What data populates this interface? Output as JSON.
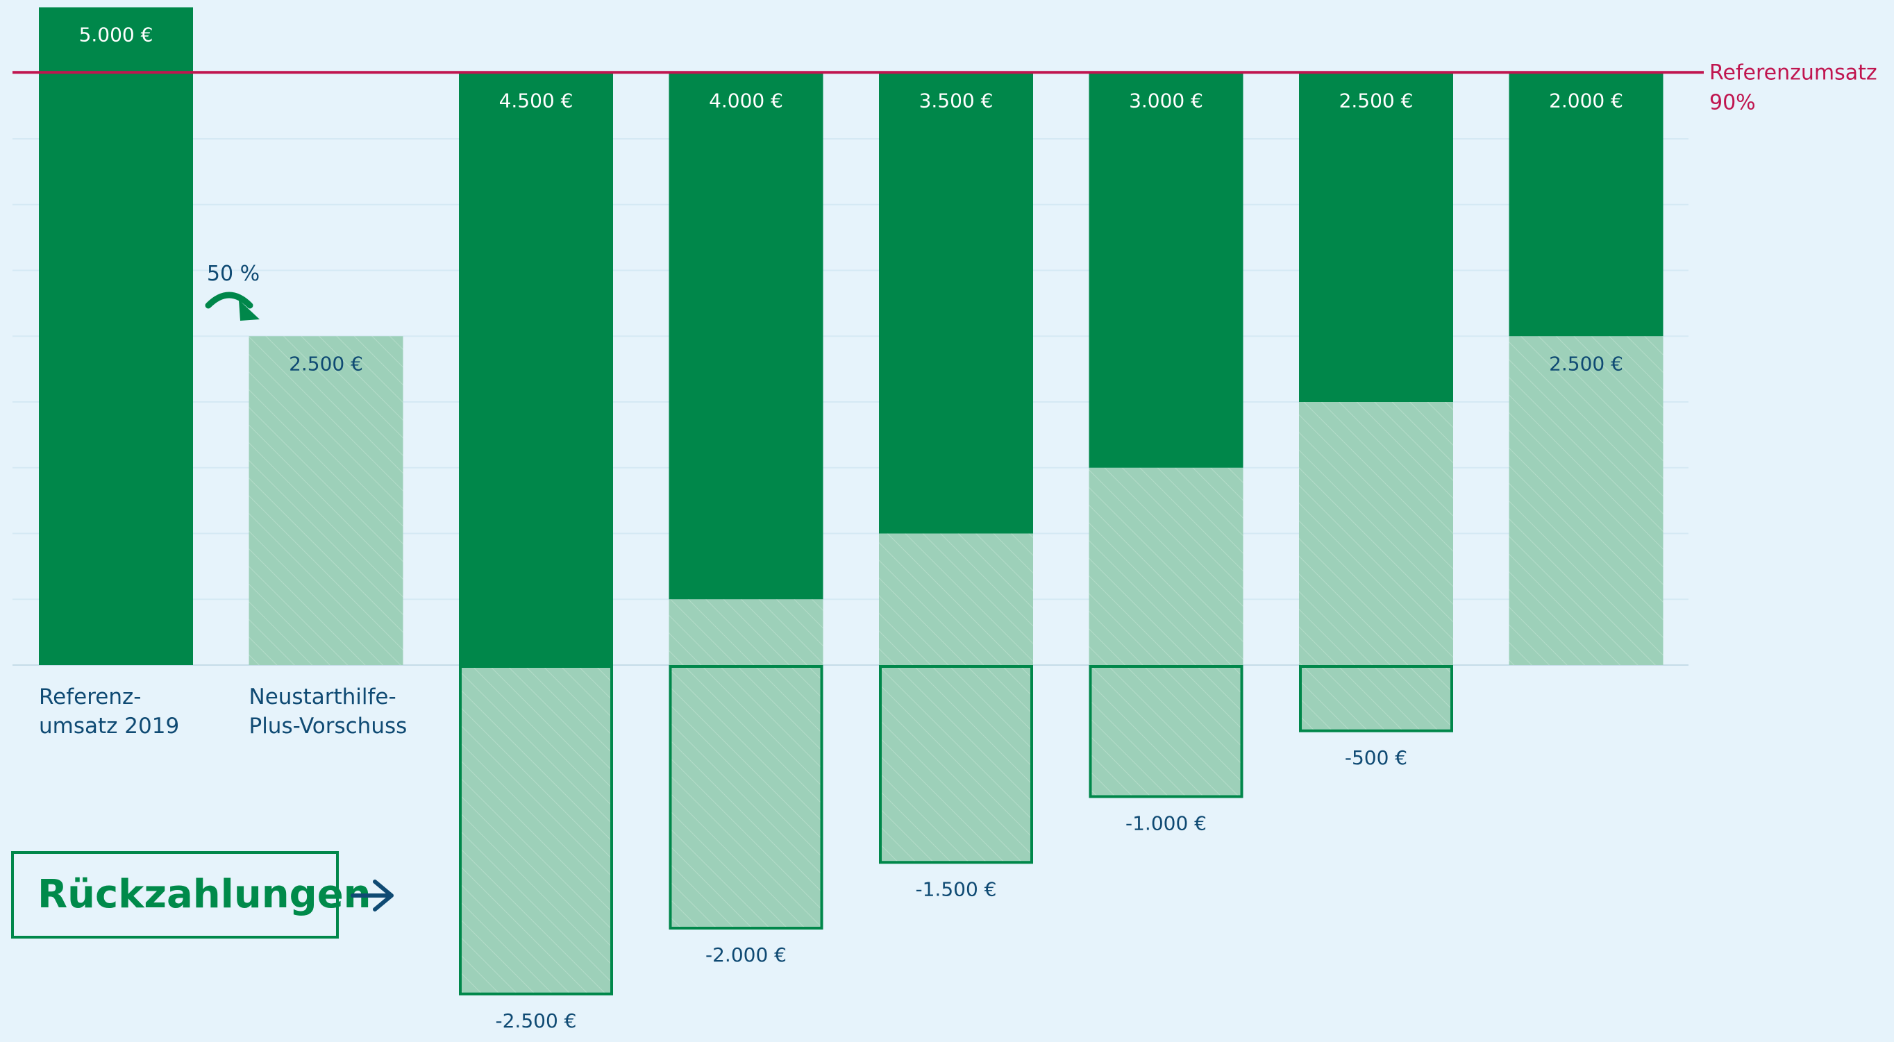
{
  "colors": {
    "background": "#e6f3fb",
    "dark_green": "#00874a",
    "light_green": "#9dd0b9",
    "reference_line": "#c0154f",
    "label_blue": "#0f4a73",
    "title_green": "#008a4a"
  },
  "chart_data": {
    "type": "bar",
    "unit": "€",
    "ylim": [
      -2500,
      5000
    ],
    "reference_line": {
      "value": 4500,
      "label_line1": "Referenzumsatz",
      "label_line2": "90%"
    },
    "bars": [
      {
        "dark": 5000,
        "light": 0,
        "negative": 0,
        "dark_label": "5.000 €",
        "light_label": "",
        "negative_label": "",
        "category_line1": "Referenz-",
        "category_line2": "umsatz 2019"
      },
      {
        "dark": 0,
        "light": 2500,
        "negative": 0,
        "dark_label": "",
        "light_label": "2.500 €",
        "negative_label": "",
        "category_line1": "Neustarthilfe-",
        "category_line2": "Plus-Vorschuss"
      },
      {
        "dark": 4500,
        "light": 0,
        "negative": -2500,
        "dark_label": "4.500 €",
        "light_label": "",
        "negative_label": "-2.500 €",
        "category_line1": "",
        "category_line2": ""
      },
      {
        "dark": 4000,
        "light": 500,
        "negative": -2000,
        "dark_label": "4.000 €",
        "light_label": "",
        "negative_label": "-2.000 €",
        "category_line1": "",
        "category_line2": ""
      },
      {
        "dark": 3500,
        "light": 1000,
        "negative": -1500,
        "dark_label": "3.500 €",
        "light_label": "",
        "negative_label": "-1.500 €",
        "category_line1": "",
        "category_line2": ""
      },
      {
        "dark": 3000,
        "light": 1500,
        "negative": -1000,
        "dark_label": "3.000 €",
        "light_label": "",
        "negative_label": "-1.000 €",
        "category_line1": "",
        "category_line2": ""
      },
      {
        "dark": 2500,
        "light": 2000,
        "negative": -500,
        "dark_label": "2.500 €",
        "light_label": "",
        "negative_label": "-500 €",
        "category_line1": "",
        "category_line2": ""
      },
      {
        "dark": 2000,
        "light": 2500,
        "negative": 0,
        "dark_label": "2.000 €",
        "light_label": "2.500 €",
        "negative_label": "",
        "category_line1": "",
        "category_line2": ""
      }
    ],
    "annotation_percent": "50 %",
    "repayment_box_label": "Rückzahlungen",
    "arrow_symbol": "→"
  }
}
